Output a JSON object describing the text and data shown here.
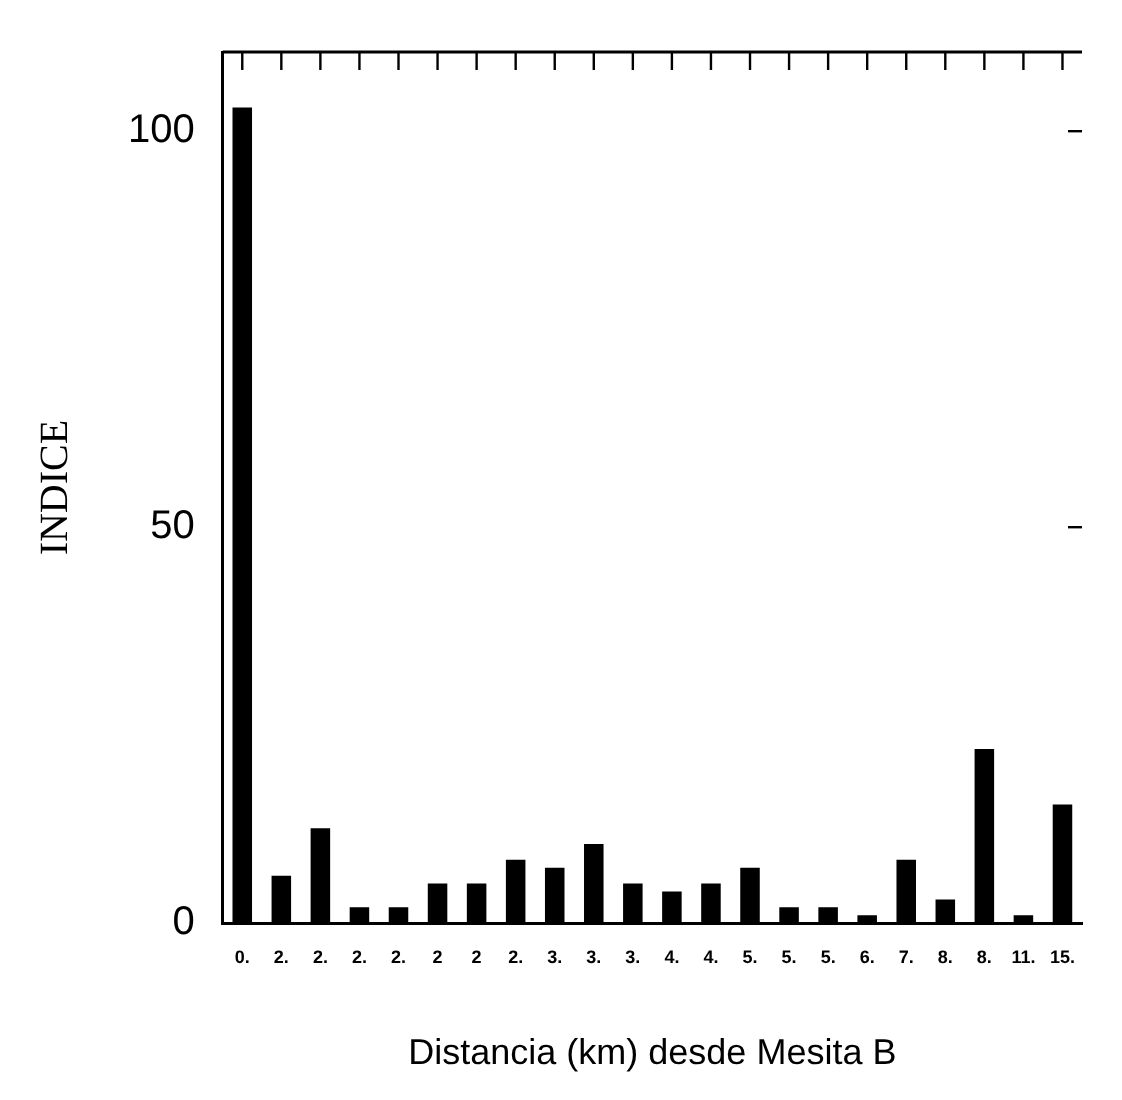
{
  "chart_data": {
    "type": "bar",
    "xlabel": "Distancia (km) desde Mesita B",
    "ylabel": "INDICE",
    "categories": [
      "0.",
      "2.",
      "2.",
      "2.",
      "2.",
      "2",
      "2",
      "2.",
      "3.",
      "3.",
      "3.",
      "4.",
      "4.",
      "5.",
      "5.",
      "5.",
      "6.",
      "7.",
      "8.",
      "8.",
      "11.",
      "15."
    ],
    "values": [
      103,
      6,
      12,
      2,
      2,
      5,
      5,
      8,
      7,
      10,
      5,
      4,
      5,
      7,
      2,
      2,
      1,
      8,
      3,
      22,
      1,
      15
    ],
    "color": "#000000",
    "ylim": [
      0,
      110
    ],
    "yticks": [
      0,
      50,
      100
    ],
    "grid": false,
    "legend": false
  }
}
